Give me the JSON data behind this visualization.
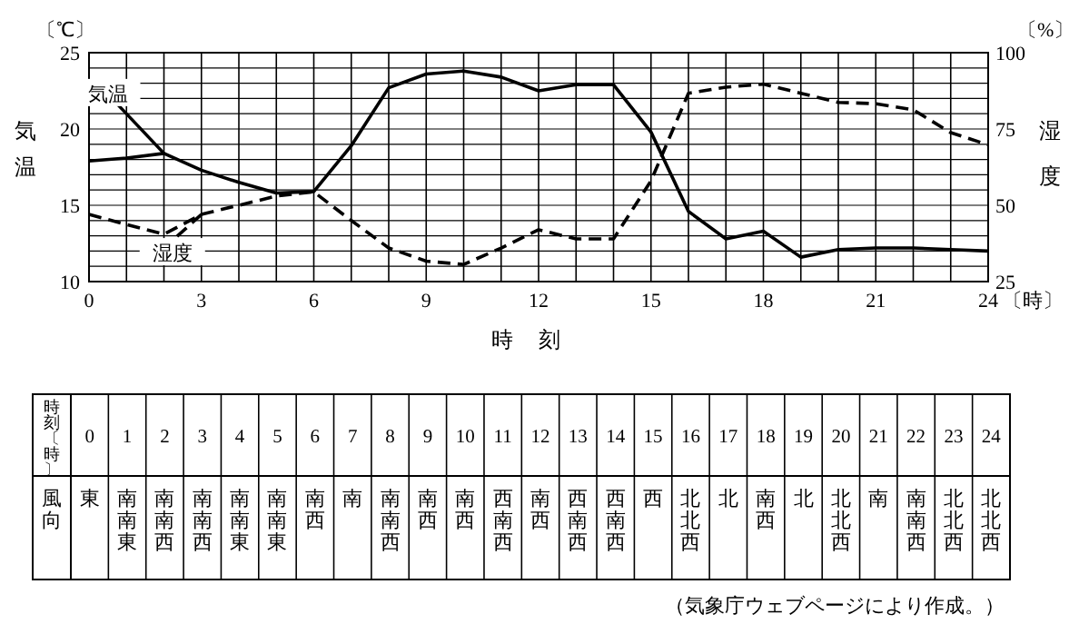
{
  "chart_data": [
    {
      "type": "line",
      "xlabel": "時刻",
      "ylabel": "気温",
      "y2label": "湿度",
      "grid": true,
      "x": [
        0,
        1,
        2,
        3,
        4,
        5,
        6,
        7,
        8,
        9,
        10,
        11,
        12,
        13,
        14,
        15,
        16,
        17,
        18,
        19,
        20,
        21,
        22,
        23,
        24
      ],
      "xlim": [
        0,
        24
      ],
      "ylim": [
        10,
        25
      ],
      "y2lim": [
        25,
        100
      ],
      "xticks": [
        0,
        {
          "value": 1,
          "label": null
        },
        {
          "value": 2,
          "label": null
        },
        3,
        {
          "value": 4,
          "label": null
        },
        {
          "value": 5,
          "label": null
        },
        6,
        {
          "value": 7,
          "label": null
        },
        {
          "value": 8,
          "label": null
        },
        9,
        {
          "value": 10,
          "label": null
        },
        {
          "value": 11,
          "label": null
        },
        12,
        {
          "value": 13,
          "label": null
        },
        {
          "value": 14,
          "label": null
        },
        15,
        {
          "value": 16,
          "label": null
        },
        {
          "value": 17,
          "label": null
        },
        18,
        {
          "value": 19,
          "label": null
        },
        {
          "value": 20,
          "label": null
        },
        21,
        {
          "value": 22,
          "label": null
        },
        {
          "value": 23,
          "label": null
        },
        24
      ],
      "yticks": [
        10,
        {
          "value": 11,
          "label": null
        },
        {
          "value": 12,
          "label": null
        },
        {
          "value": 13,
          "label": null
        },
        {
          "value": 14,
          "label": null
        },
        15,
        {
          "value": 16,
          "label": null
        },
        {
          "value": 17,
          "label": null
        },
        {
          "value": 18,
          "label": null
        },
        {
          "value": 19,
          "label": null
        },
        20,
        {
          "value": 21,
          "label": null
        },
        {
          "value": 22,
          "label": null
        },
        {
          "value": 23,
          "label": null
        },
        {
          "value": 24,
          "label": null
        },
        25
      ],
      "y2ticks": [
        25,
        50,
        75,
        100
      ],
      "series": [
        {
          "name": "気温",
          "color": "#000000",
          "line_style": "solid",
          "values": [
            17.9,
            18.1,
            18.4,
            17.3,
            16.5,
            15.8,
            15.9,
            18.9,
            22.7,
            23.6,
            23.8,
            23.4,
            22.5,
            22.9,
            22.9,
            19.8,
            14.6,
            12.8,
            13.3,
            11.6,
            12.1,
            12.2,
            12.2,
            12.1,
            12.0
          ]
        },
        {
          "name": "湿度",
          "color": "#000000",
          "line_style": "dashed",
          "axis": "y2",
          "values": [
            47,
            43.7,
            40.5,
            47,
            50,
            53,
            54.4,
            45,
            36,
            31.7,
            30.6,
            36,
            42,
            39,
            39,
            58,
            86.7,
            88.7,
            89.7,
            86.7,
            83.7,
            83.3,
            81.3,
            73.8,
            69.8
          ]
        }
      ],
      "annotations": [
        "〔℃〕",
        "〔%〕",
        "〔時〕"
      ]
    },
    {
      "type": "heatmap",
      "xlabel": "時刻〔時〕",
      "cells": [
        [
          null,
          null,
          null,
          null,
          null,
          null,
          null,
          null,
          null,
          null,
          null,
          null,
          null,
          null,
          null,
          null,
          null,
          null,
          null,
          null,
          null,
          null,
          null,
          null,
          null
        ]
      ],
      "categories": [
        "0",
        "1",
        "2",
        "3",
        "4",
        "5",
        "6",
        "7",
        "8",
        "9",
        "10",
        "11",
        "12",
        "13",
        "14",
        "15",
        "16",
        "17",
        "18",
        "19",
        "20",
        "21",
        "22",
        "23",
        "24"
      ],
      "y_categories": [
        "風向"
      ],
      "cell_labels": [
        [
          "東",
          "南南東",
          "南南西",
          "南南西",
          "南南東",
          "南南東",
          "南西",
          "南",
          "南南西",
          "南西",
          "南西",
          "西南西",
          "南西",
          "西南西",
          "西南西",
          "西",
          "北北西",
          "北",
          "南西",
          "北",
          "北北西",
          "南",
          "南南西",
          "北北西",
          "北北西"
        ]
      ],
      "annotations": [
        "（気象庁ウェブページにより作成。）"
      ]
    }
  ]
}
